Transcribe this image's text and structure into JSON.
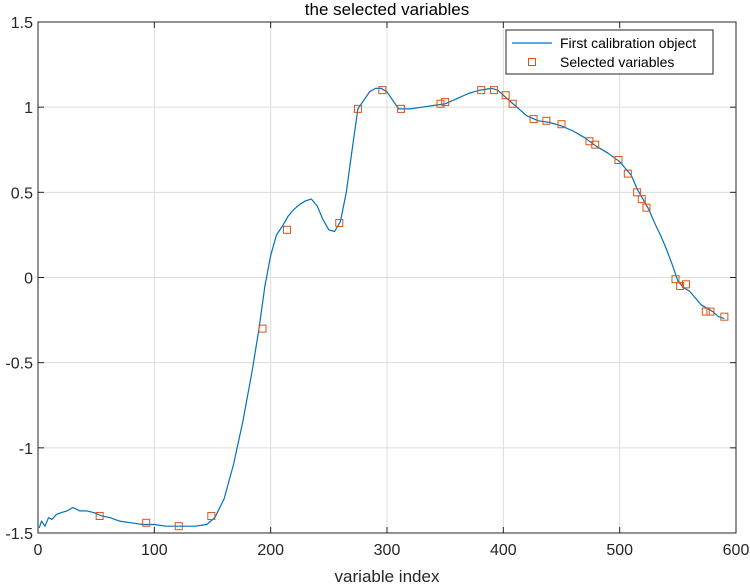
{
  "chart_data": {
    "type": "line",
    "title": "the selected variables",
    "xlabel": "variable index",
    "ylabel": "",
    "xlim": [
      0,
      600
    ],
    "ylim": [
      -1.5,
      1.5
    ],
    "xticks": [
      0,
      100,
      200,
      300,
      400,
      500,
      600
    ],
    "yticks": [
      -1.5,
      -1,
      -0.5,
      0,
      0.5,
      1,
      1.5
    ],
    "xtick_labels": [
      "0",
      "100",
      "200",
      "300",
      "400",
      "500",
      "600"
    ],
    "ytick_labels": [
      "-1.5",
      "-1",
      "-0.5",
      "0",
      "0.5",
      "1",
      "1.5"
    ],
    "grid": true,
    "legend_position": "top-right",
    "colors": {
      "line": "#0072BD",
      "marker": "#D95319"
    },
    "series": [
      {
        "name": "First calibration object",
        "type": "line",
        "x": [
          1,
          3,
          6,
          9,
          12,
          16,
          20,
          25,
          30,
          36,
          42,
          48,
          55,
          62,
          70,
          80,
          90,
          100,
          110,
          122,
          135,
          145,
          152,
          160,
          168,
          176,
          184,
          190,
          195,
          200,
          205,
          210,
          215,
          220,
          225,
          230,
          235,
          240,
          245,
          250,
          255,
          260,
          265,
          270,
          275,
          280,
          285,
          290,
          295,
          300,
          305,
          310,
          320,
          330,
          340,
          350,
          360,
          370,
          380,
          390,
          395,
          400,
          405,
          410,
          420,
          430,
          440,
          450,
          460,
          470,
          480,
          490,
          500,
          505,
          510,
          515,
          520,
          525,
          530,
          535,
          540,
          545,
          550,
          555,
          560,
          565,
          570,
          575,
          580,
          585,
          590
        ],
        "y": [
          -1.47,
          -1.43,
          -1.46,
          -1.41,
          -1.42,
          -1.39,
          -1.38,
          -1.37,
          -1.35,
          -1.37,
          -1.37,
          -1.38,
          -1.4,
          -1.41,
          -1.43,
          -1.44,
          -1.45,
          -1.45,
          -1.46,
          -1.46,
          -1.46,
          -1.45,
          -1.41,
          -1.3,
          -1.1,
          -0.85,
          -0.55,
          -0.3,
          -0.05,
          0.13,
          0.25,
          0.3,
          0.36,
          0.4,
          0.43,
          0.45,
          0.46,
          0.42,
          0.34,
          0.28,
          0.27,
          0.33,
          0.5,
          0.75,
          0.99,
          1.04,
          1.09,
          1.11,
          1.11,
          1.09,
          1.04,
          0.99,
          0.99,
          1.0,
          1.01,
          1.02,
          1.05,
          1.08,
          1.1,
          1.11,
          1.1,
          1.07,
          1.04,
          1.01,
          0.95,
          0.92,
          0.91,
          0.89,
          0.86,
          0.82,
          0.77,
          0.73,
          0.68,
          0.64,
          0.6,
          0.52,
          0.46,
          0.4,
          0.32,
          0.25,
          0.17,
          0.08,
          -0.02,
          -0.06,
          -0.08,
          -0.12,
          -0.16,
          -0.18,
          -0.2,
          -0.23,
          -0.24
        ]
      },
      {
        "name": "Selected variables",
        "type": "scatter",
        "marker": "square",
        "x": [
          53,
          93,
          121,
          149,
          193,
          214,
          259,
          275,
          296,
          312,
          346,
          350,
          381,
          392,
          402,
          408,
          426,
          437,
          450,
          474,
          479,
          499,
          507,
          515,
          519,
          523,
          548,
          552,
          557,
          574,
          578,
          590
        ],
        "y": [
          -1.4,
          -1.44,
          -1.46,
          -1.4,
          -0.3,
          0.28,
          0.32,
          0.99,
          1.1,
          0.99,
          1.02,
          1.03,
          1.1,
          1.1,
          1.07,
          1.02,
          0.93,
          0.92,
          0.9,
          0.8,
          0.78,
          0.69,
          0.61,
          0.5,
          0.46,
          0.41,
          -0.01,
          -0.05,
          -0.04,
          -0.2,
          -0.2,
          -0.23
        ]
      }
    ]
  }
}
